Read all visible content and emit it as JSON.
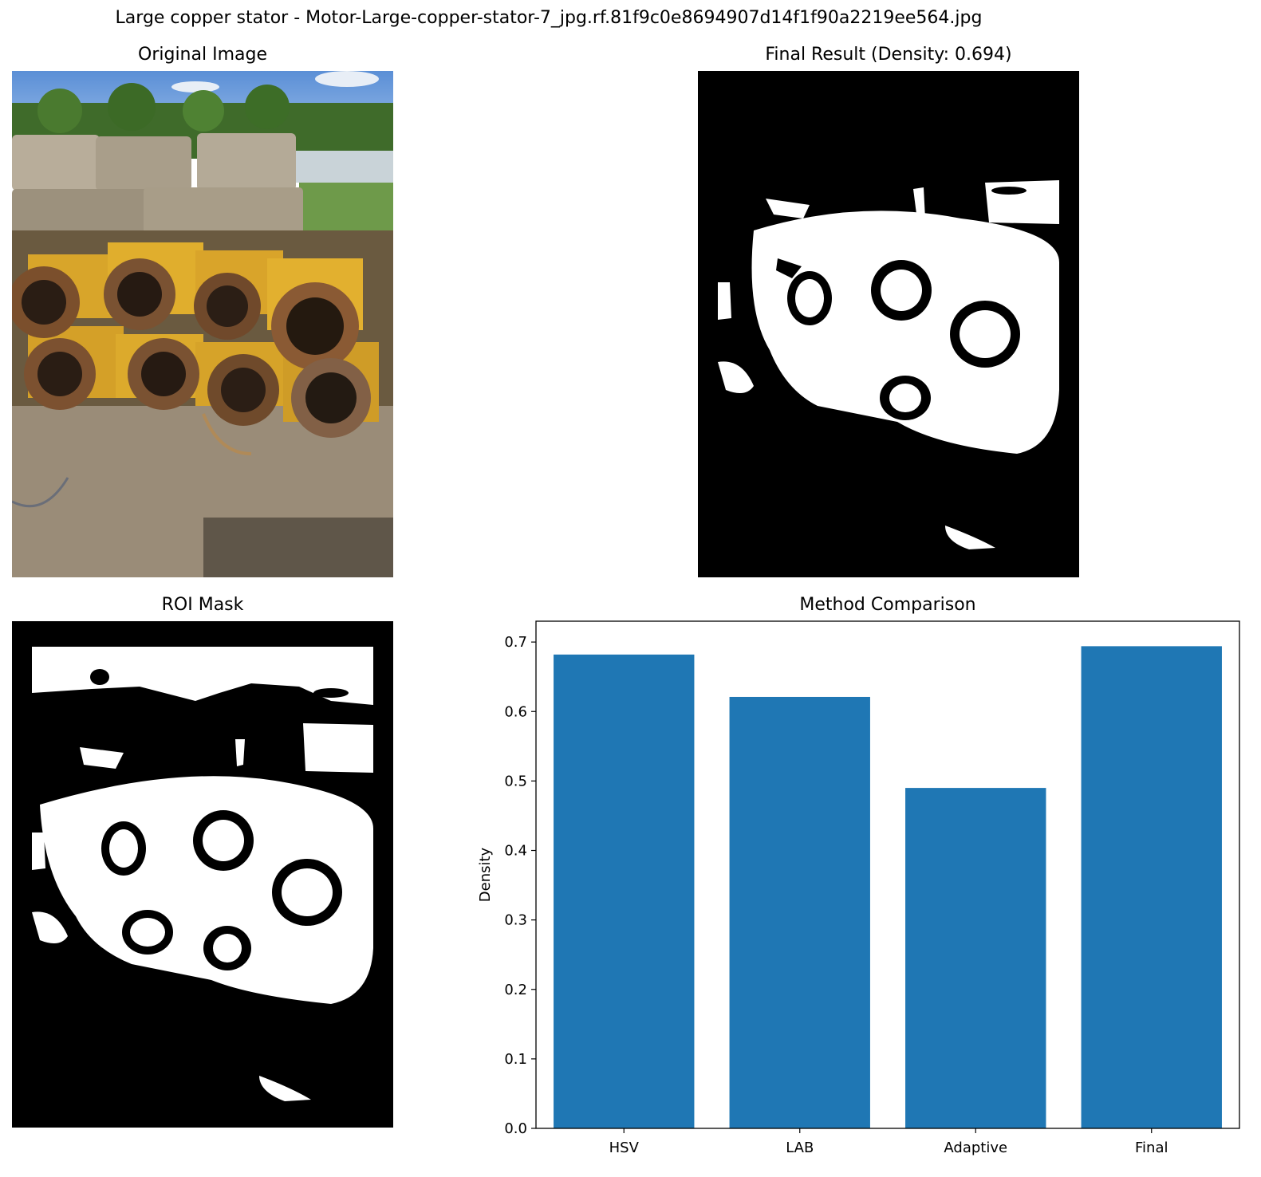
{
  "figure": {
    "title": "Large copper stator - Motor-Large-copper-stator-7_jpg.rf.81f9c0e8694907d14f1f90a2219ee564.jpg"
  },
  "panels": {
    "original": {
      "title": "Original Image"
    },
    "final": {
      "title": "Final Result (Density: 0.694)"
    },
    "roi": {
      "title": "ROI Mask"
    },
    "comparison": {
      "title": "Method Comparison"
    }
  },
  "colors": {
    "bar": "#1f77b4",
    "mask_bg": "#000000",
    "mask_fg": "#ffffff"
  },
  "chart_data": {
    "type": "bar",
    "title": "Method Comparison",
    "categories": [
      "HSV",
      "LAB",
      "Adaptive",
      "Final"
    ],
    "values": [
      0.682,
      0.621,
      0.49,
      0.694
    ],
    "xlabel": "",
    "ylabel": "Density",
    "ylim": [
      0,
      0.73
    ],
    "yticks": [
      "0.0",
      "0.1",
      "0.2",
      "0.3",
      "0.4",
      "0.5",
      "0.6",
      "0.7"
    ],
    "grid": false
  }
}
